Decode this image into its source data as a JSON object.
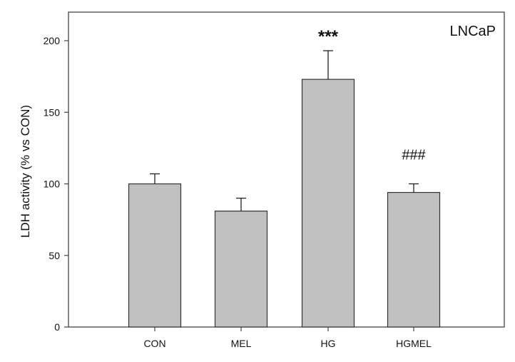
{
  "chart_data": {
    "type": "bar",
    "title": "",
    "panel_label": "LNCaP",
    "xlabel": "",
    "ylabel": "LDH activity (% vs CON)",
    "categories": [
      "CON",
      "MEL",
      "HG",
      "HGMEL"
    ],
    "values": [
      100,
      81,
      173,
      94
    ],
    "errors": [
      7,
      9,
      20,
      6
    ],
    "annotations": [
      "",
      "",
      "***",
      "###"
    ],
    "ylim": [
      0,
      220
    ],
    "yticks": [
      0,
      50,
      100,
      150,
      200
    ],
    "grid": false,
    "legend": null,
    "bar_color": "#c0c0c0",
    "edge_color": "#333333"
  }
}
